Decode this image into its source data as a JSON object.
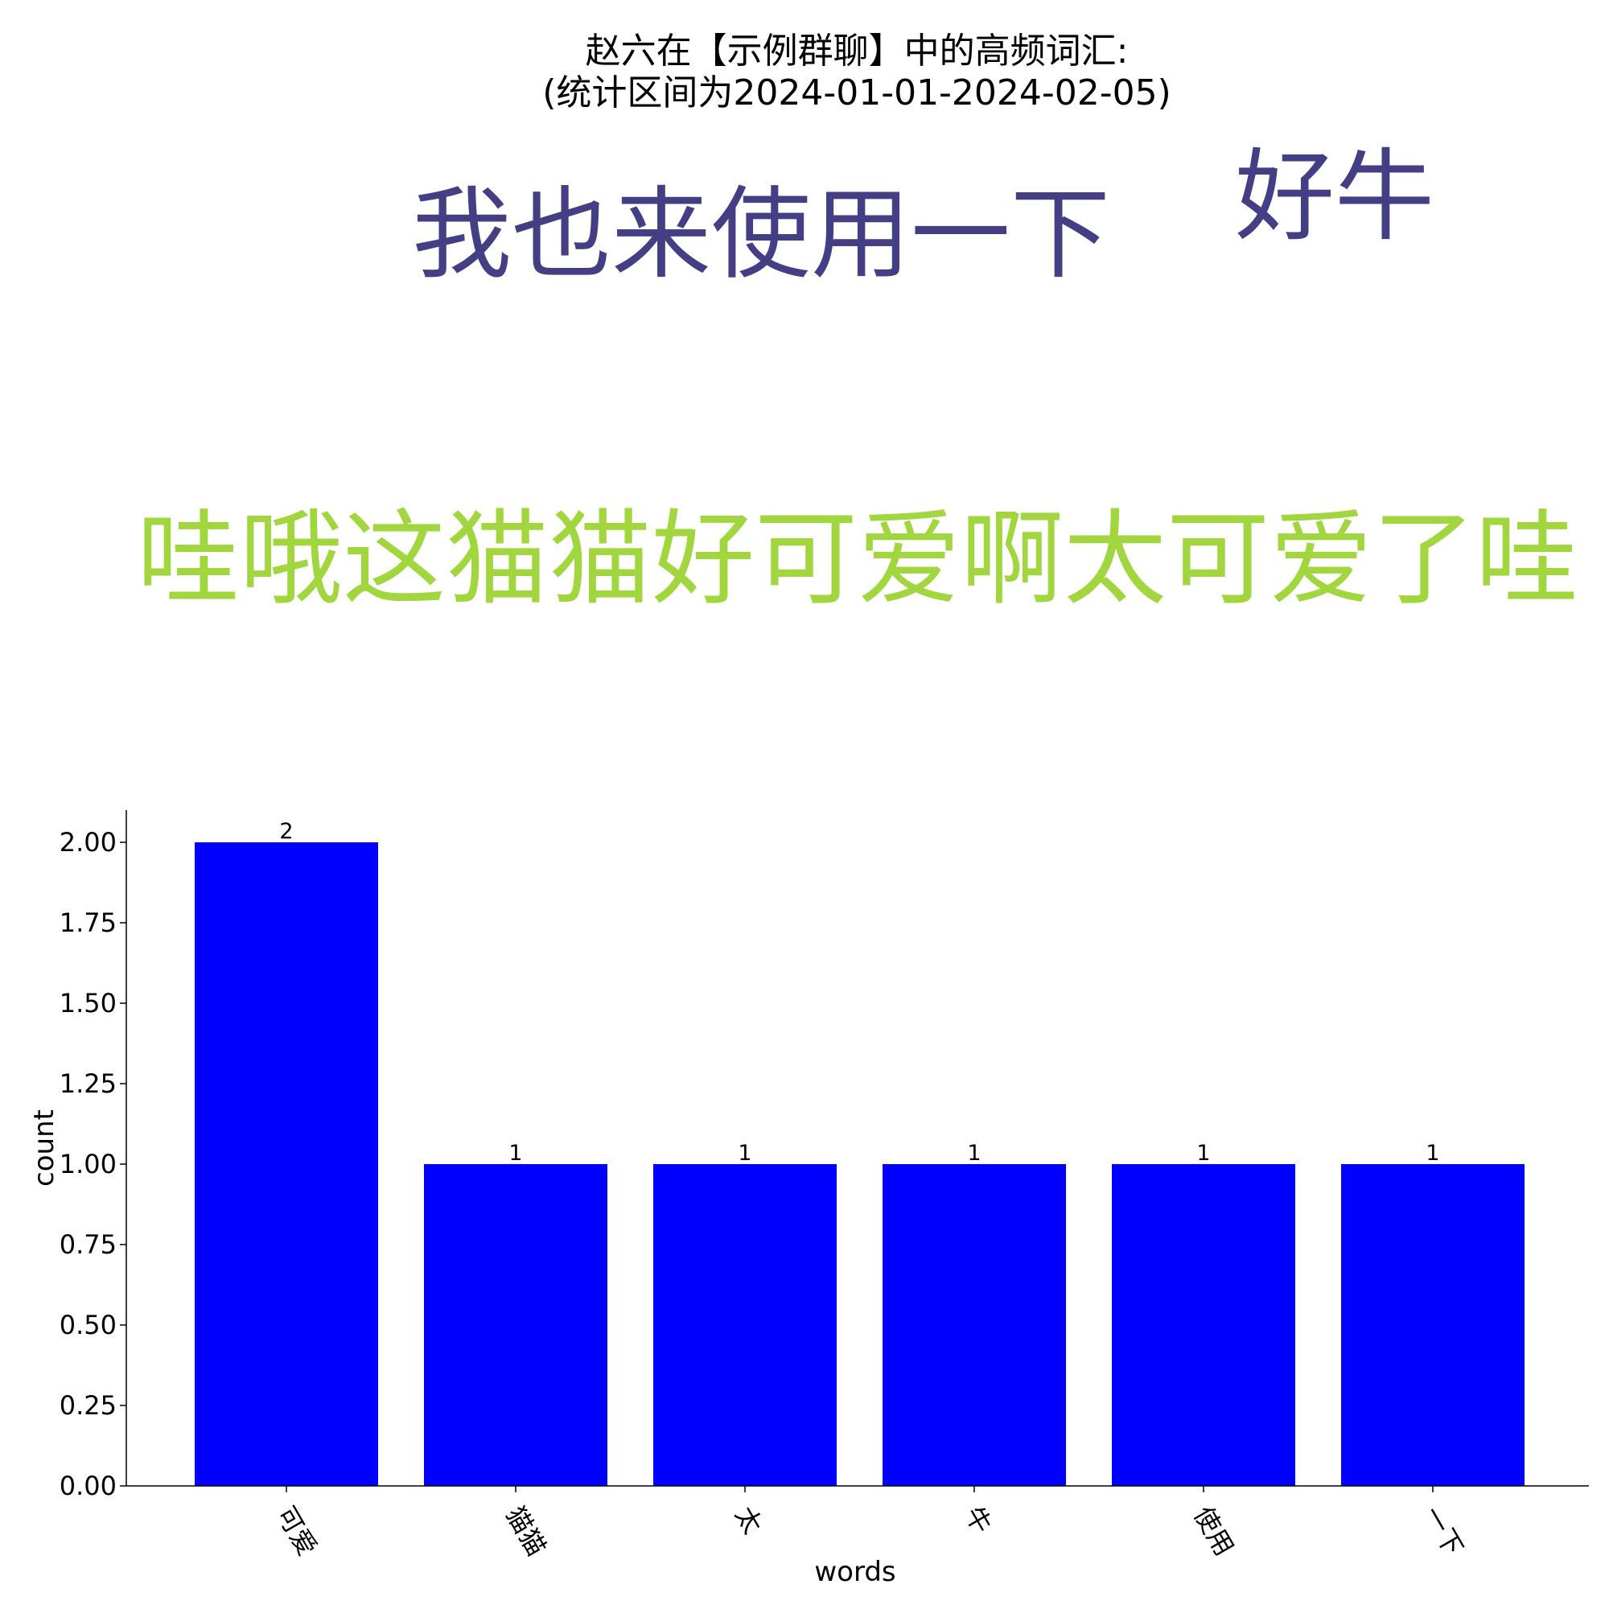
{
  "title": {
    "line1": "赵六在【示例群聊】中的高频词汇:",
    "line2": "(统计区间为2024-01-01-2024-02-05)"
  },
  "wordcloud": {
    "words": [
      {
        "text": "我也来使用一下",
        "color": "#443f85"
      },
      {
        "text": "好牛",
        "color": "#443f85"
      },
      {
        "text": "哇哦这猫猫好可爱啊太可爱了哇",
        "color": "#a2d63e"
      }
    ]
  },
  "chart_data": {
    "type": "bar",
    "categories": [
      "可爱",
      "猫猫",
      "太",
      "牛",
      "使用",
      "一下"
    ],
    "values": [
      2,
      1,
      1,
      1,
      1,
      1
    ],
    "data_labels": [
      "2",
      "1",
      "1",
      "1",
      "1",
      "1"
    ],
    "xlabel": "words",
    "ylabel": "count",
    "ylim": [
      0,
      2.1
    ],
    "yticks": [
      "0.00",
      "0.25",
      "0.50",
      "0.75",
      "1.00",
      "1.25",
      "1.50",
      "1.75",
      "2.00"
    ],
    "bar_color": "#0000ff",
    "grid": false
  }
}
